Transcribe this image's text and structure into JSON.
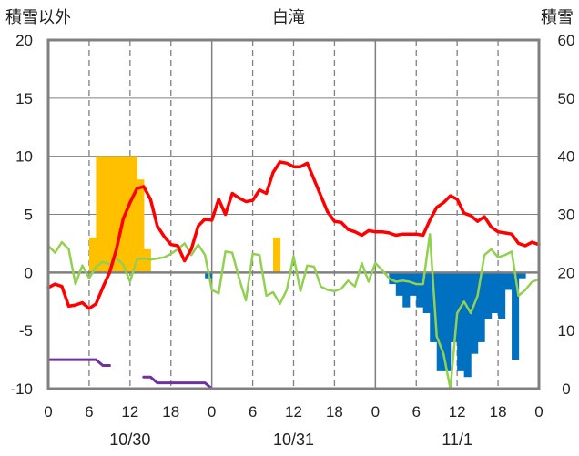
{
  "chart_data": {
    "type": "combo-bar-line",
    "title": "白滝",
    "left_axis": {
      "label": "積雪以外",
      "ylim": [
        -10,
        20
      ],
      "ticks": [
        20,
        15,
        10,
        5,
        0,
        -5,
        -10
      ],
      "tick_labels": [
        "20",
        "15",
        "10",
        "5",
        "0",
        "-5",
        "-10"
      ]
    },
    "right_axis": {
      "label": "積雪",
      "ylim": [
        0,
        60
      ],
      "ticks": [
        60,
        50,
        40,
        30,
        20,
        10,
        0
      ],
      "tick_labels": [
        "60",
        "50",
        "40",
        "30",
        "20",
        "10",
        "0"
      ]
    },
    "x_axis": {
      "xlim": [
        0,
        72
      ],
      "ticks": [
        0,
        6,
        12,
        18,
        24,
        30,
        36,
        42,
        48,
        54,
        60,
        66,
        72
      ],
      "tick_labels": [
        "0",
        "6",
        "12",
        "18",
        "0",
        "6",
        "12",
        "18",
        "0",
        "6",
        "12",
        "18",
        "0"
      ],
      "dates": [
        {
          "x": 12,
          "label": "10/30"
        },
        {
          "x": 36,
          "label": "10/31"
        },
        {
          "x": 60,
          "label": "11/1"
        }
      ]
    },
    "grid": {
      "dashed_vertical_at": [
        6,
        12,
        18,
        30,
        36,
        42,
        54,
        60,
        66
      ],
      "solid_vertical_at": [
        24,
        48
      ],
      "horizontal_at": [
        0,
        5,
        10,
        15
      ]
    },
    "colors": {
      "orange": "#FFC000",
      "blue": "#0070C0",
      "red": "#FF0000",
      "green": "#92D050",
      "purple": "#7030A0",
      "zero_line": "#808080",
      "frame": "#808080",
      "grid": "#808080"
    },
    "series": [
      {
        "kind": "bar",
        "axis": "left",
        "color": "#FFC000",
        "x": [
          7,
          8,
          9,
          10,
          11,
          12,
          13,
          14,
          15,
          34
        ],
        "values": [
          3,
          10,
          10,
          10,
          10,
          10,
          10,
          8,
          2,
          3
        ]
      },
      {
        "kind": "bar",
        "axis": "left",
        "color": "#0070C0",
        "x": [
          24,
          51,
          52,
          53,
          54,
          55,
          56,
          57,
          58,
          59,
          60,
          61,
          62,
          63,
          64,
          65,
          66,
          67,
          68,
          69,
          70
        ],
        "values": [
          -0.5,
          -1,
          -2,
          -3,
          -2,
          -3,
          -3.5,
          -6,
          -8.5,
          -8.5,
          -6,
          -8.5,
          -9,
          -7,
          -6,
          -4,
          -3.5,
          -4,
          -1.5,
          -7.5,
          -0.5
        ]
      },
      {
        "kind": "line",
        "axis": "left",
        "color": "#FF0000",
        "x": [
          0,
          1,
          2,
          3,
          4,
          5,
          6,
          7,
          8,
          9,
          10,
          11,
          12,
          13,
          14,
          15,
          16,
          17,
          18,
          19,
          20,
          21,
          22,
          23,
          24,
          25,
          26,
          27,
          28,
          29,
          30,
          31,
          32,
          33,
          34,
          35,
          36,
          37,
          38,
          39,
          40,
          41,
          42,
          43,
          44,
          45,
          46,
          47,
          48,
          49,
          50,
          51,
          52,
          53,
          54,
          55,
          56,
          57,
          58,
          59,
          60,
          61,
          62,
          63,
          64,
          65,
          66,
          67,
          68,
          69,
          70,
          71,
          72
        ],
        "values": [
          -1.3,
          -1,
          -1.2,
          -2.9,
          -2.8,
          -2.6,
          -3.1,
          -2.7,
          -1.3,
          0,
          2,
          4.6,
          6,
          7.2,
          7.4,
          6.3,
          4,
          3.1,
          2.4,
          2.3,
          1,
          2,
          4,
          4.6,
          4.5,
          6.3,
          5,
          6.8,
          6.4,
          6.1,
          6.2,
          7.1,
          6.8,
          8.6,
          9.5,
          9.4,
          9.1,
          9.1,
          9.4,
          8,
          6.6,
          5.2,
          4.4,
          4.3,
          3.7,
          3.5,
          3.2,
          3.6,
          3.5,
          3.5,
          3.4,
          3.2,
          3.3,
          3.3,
          3.3,
          3.2,
          4.5,
          5.6,
          6,
          6.6,
          6.3,
          5.1,
          4.9,
          4.4,
          4.8,
          3.9,
          3.5,
          3.4,
          3.3,
          2.5,
          2.3,
          2.6,
          2.4
        ]
      },
      {
        "kind": "line",
        "axis": "left",
        "color": "#92D050",
        "x": [
          0,
          1,
          2,
          3,
          4,
          5,
          6,
          7,
          8,
          9,
          10,
          11,
          12,
          13,
          14,
          15,
          16,
          17,
          18,
          19,
          20,
          21,
          22,
          23,
          24,
          25,
          26,
          27,
          28,
          29,
          30,
          31,
          32,
          33,
          34,
          35,
          36,
          37,
          38,
          39,
          40,
          41,
          42,
          43,
          44,
          45,
          46,
          47,
          48,
          49,
          50,
          51,
          52,
          53,
          54,
          55,
          56,
          57,
          58,
          59,
          60,
          61,
          62,
          63,
          64,
          65,
          66,
          67,
          68,
          69,
          70,
          71,
          72
        ],
        "values": [
          2.3,
          1.7,
          2.6,
          2,
          -1,
          0.6,
          -0.5,
          0.5,
          0.9,
          0.7,
          1.2,
          0.7,
          -0.8,
          1.1,
          1.2,
          1.1,
          1.2,
          1.3,
          1.6,
          2,
          2.5,
          1.5,
          2.4,
          1.5,
          -1.5,
          -1.8,
          1.8,
          1.7,
          -0.5,
          -2.4,
          1.6,
          1.5,
          -2,
          -1.7,
          -2.7,
          -1.5,
          1.4,
          -1.6,
          0.6,
          0.5,
          -1.2,
          -1.5,
          -1.6,
          -1.4,
          -0.7,
          -1.2,
          0.8,
          -0.8,
          0.8,
          0.2,
          -0.5,
          -0.8,
          -0.7,
          -0.8,
          -1,
          -1,
          3.3,
          -5.5,
          -7,
          -10,
          -3.5,
          -2.5,
          -3.5,
          -2,
          1.5,
          2,
          1.3,
          1.5,
          1.8,
          -2,
          -1.5,
          -0.8,
          -0.6
        ]
      },
      {
        "kind": "line",
        "axis": "right",
        "color": "#7030A0",
        "x": [
          0,
          1,
          2,
          3,
          4,
          5,
          6,
          7,
          8,
          9
        ],
        "values": [
          5,
          5,
          5,
          5,
          5,
          5,
          5,
          5,
          4,
          4
        ]
      },
      {
        "kind": "line",
        "axis": "right",
        "color": "#7030A0",
        "x": [
          14,
          15,
          16,
          17,
          18,
          19,
          20,
          21,
          22,
          23,
          24,
          25,
          26,
          27,
          28,
          29,
          30,
          31,
          32,
          33,
          34,
          35,
          36,
          37,
          38,
          39,
          40,
          41,
          42,
          43,
          44,
          45,
          46,
          47,
          48,
          49,
          50,
          51,
          52,
          53,
          54,
          55,
          56,
          57,
          58,
          59,
          60,
          61,
          62,
          63,
          64,
          65,
          66,
          67,
          68,
          69,
          70,
          71,
          72
        ],
        "values": [
          2,
          2,
          1,
          1,
          1,
          1,
          1,
          1,
          1,
          1,
          0,
          0,
          0,
          0,
          0,
          0,
          0,
          0,
          0,
          0,
          0,
          0,
          0,
          0,
          0,
          0,
          0,
          0,
          0,
          0,
          0,
          0,
          0,
          0,
          0,
          0,
          0,
          0,
          0,
          0,
          0,
          0,
          0,
          0,
          0,
          0,
          0,
          0,
          0,
          0,
          0,
          0,
          0,
          0,
          0,
          0,
          0,
          0,
          0
        ]
      }
    ]
  }
}
